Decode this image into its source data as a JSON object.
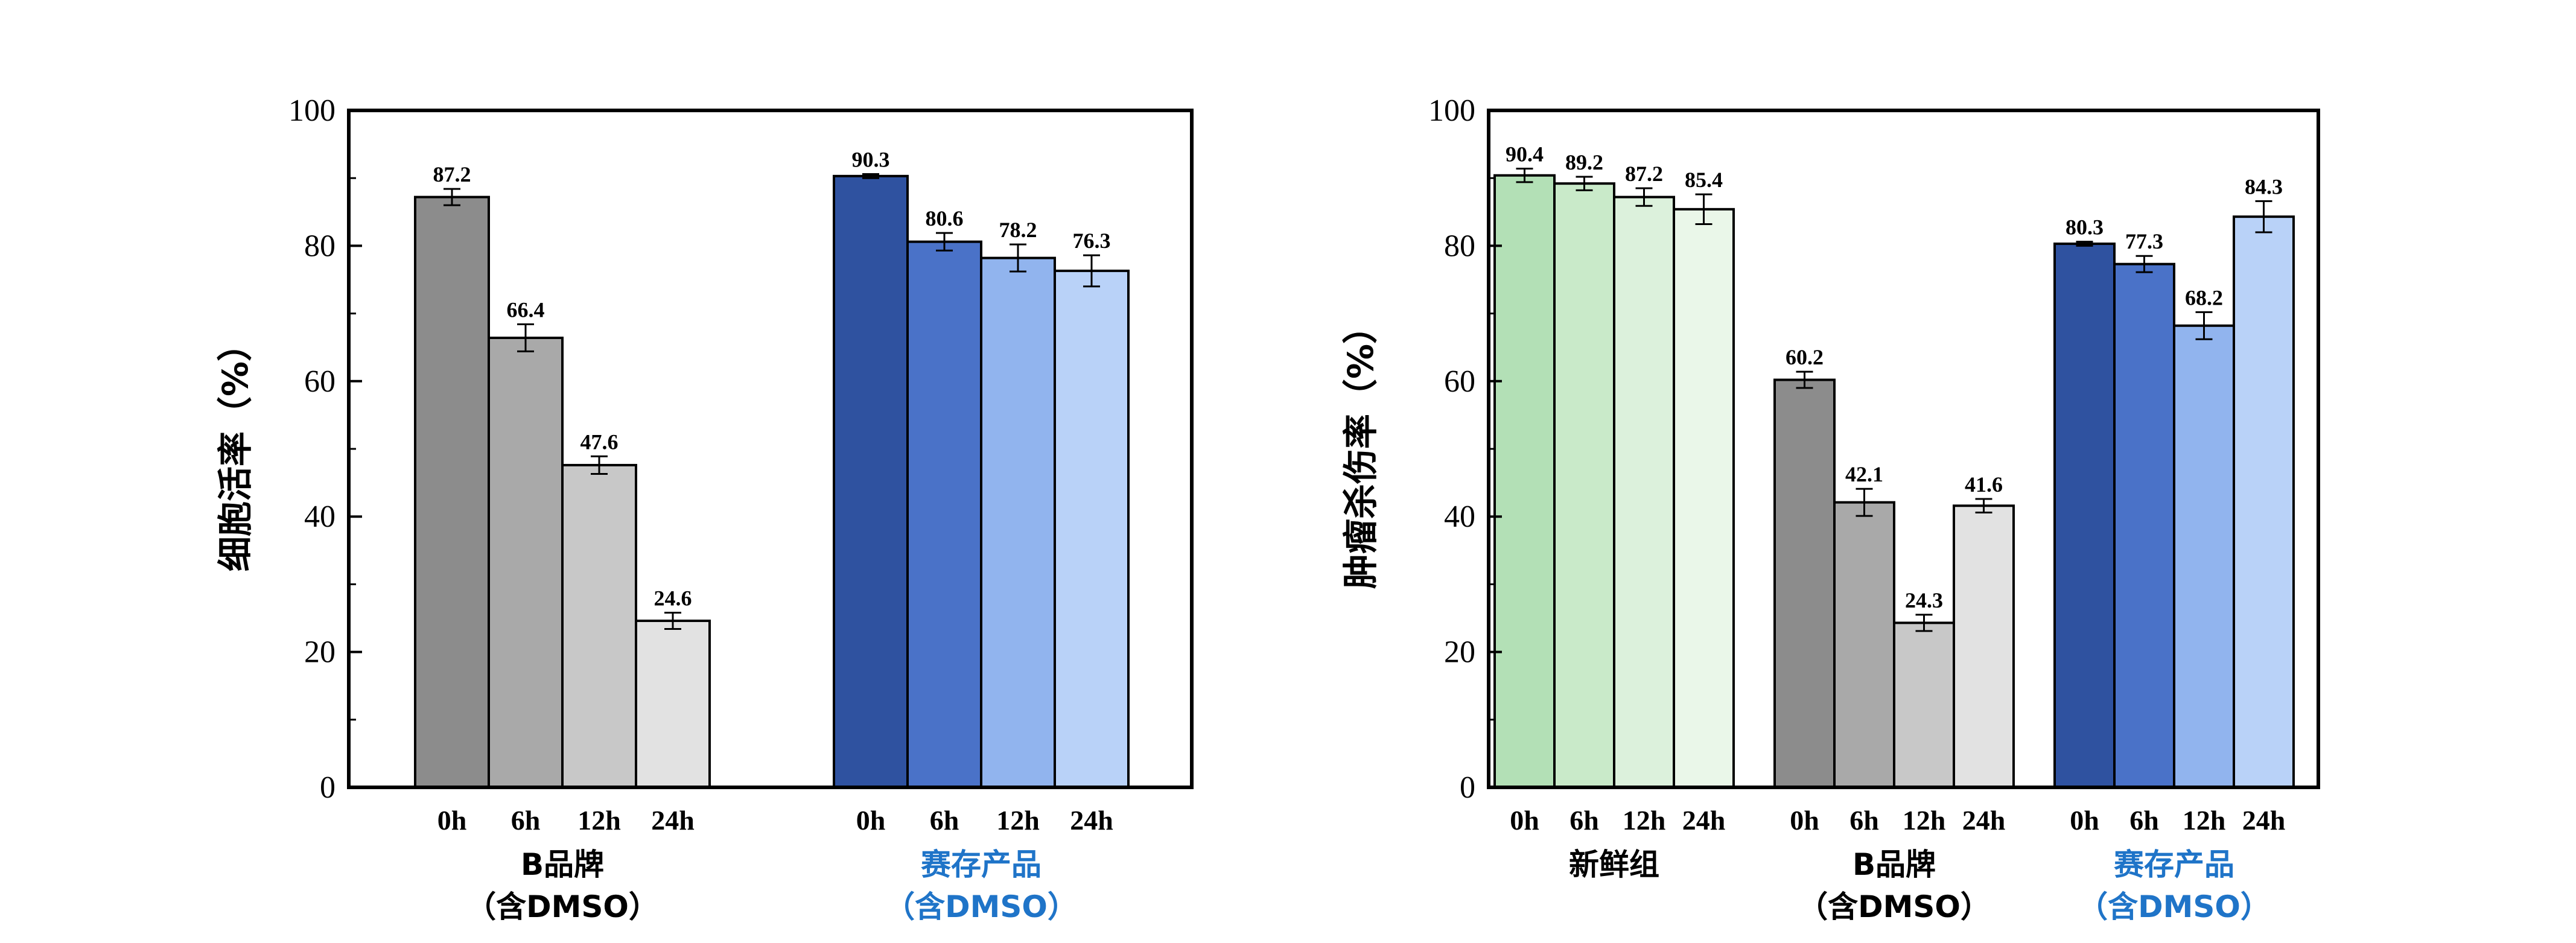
{
  "chart_data": [
    {
      "type": "bar",
      "ylabel": "细胞活率（%）",
      "ylim": [
        0,
        100
      ],
      "yticks": [
        0,
        20,
        40,
        60,
        80,
        100
      ],
      "grid": false,
      "groups": [
        {
          "label": "B品牌\n（含DMSO）",
          "label_color": "#000000",
          "bars": [
            {
              "category": "0h",
              "value": 87.2,
              "label": "87.2",
              "error": 1.2,
              "color": "#8c8c8c"
            },
            {
              "category": "6h",
              "value": 66.4,
              "label": "66.4",
              "error": 2.0,
              "color": "#a9a9a9"
            },
            {
              "category": "12h",
              "value": 47.6,
              "label": "47.6",
              "error": 1.3,
              "color": "#c8c8c8"
            },
            {
              "category": "24h",
              "value": 24.6,
              "label": "24.6",
              "error": 1.2,
              "color": "#e2e2e2"
            }
          ]
        },
        {
          "label": "赛存产品\n（含DMSO）",
          "label_color": "#1f74c8",
          "bars": [
            {
              "category": "0h",
              "value": 90.3,
              "label": "90.3",
              "error": 0.3,
              "color": "#2f52a0"
            },
            {
              "category": "6h",
              "value": 80.6,
              "label": "80.6",
              "error": 1.3,
              "color": "#4a72c8"
            },
            {
              "category": "12h",
              "value": 78.2,
              "label": "78.2",
              "error": 2.0,
              "color": "#91b4ee"
            },
            {
              "category": "24h",
              "value": 76.3,
              "label": "76.3",
              "error": 2.3,
              "color": "#b9d2f8"
            }
          ]
        }
      ]
    },
    {
      "type": "bar",
      "ylabel": "肿瘤杀伤率（%）",
      "ylim": [
        0,
        100
      ],
      "yticks": [
        0,
        20,
        40,
        60,
        80,
        100
      ],
      "grid": false,
      "groups": [
        {
          "label": "新鲜组",
          "label_color": "#000000",
          "bars": [
            {
              "category": "0h",
              "value": 90.4,
              "label": "90.4",
              "error": 1.0,
              "color": "#b3e0b6"
            },
            {
              "category": "6h",
              "value": 89.2,
              "label": "89.2",
              "error": 1.0,
              "color": "#c9eac9"
            },
            {
              "category": "12h",
              "value": 87.2,
              "label": "87.2",
              "error": 1.3,
              "color": "#dcf1dc"
            },
            {
              "category": "24h",
              "value": 85.4,
              "label": "85.4",
              "error": 2.2,
              "color": "#eaf7e9"
            }
          ]
        },
        {
          "label": "B品牌\n（含DMSO）",
          "label_color": "#000000",
          "bars": [
            {
              "category": "0h",
              "value": 60.2,
              "label": "60.2",
              "error": 1.2,
              "color": "#8c8c8c"
            },
            {
              "category": "6h",
              "value": 42.1,
              "label": "42.1",
              "error": 2.0,
              "color": "#a9a9a9"
            },
            {
              "category": "12h",
              "value": 24.3,
              "label": "24.3",
              "error": 1.2,
              "color": "#c8c8c8"
            },
            {
              "category": "24h",
              "value": 41.6,
              "label": "41.6",
              "error": 1.0,
              "color": "#e2e2e2"
            }
          ]
        },
        {
          "label": "赛存产品\n（含DMSO）",
          "label_color": "#1f74c8",
          "bars": [
            {
              "category": "0h",
              "value": 80.3,
              "label": "80.3",
              "error": 0.3,
              "color": "#2f52a0"
            },
            {
              "category": "6h",
              "value": 77.3,
              "label": "77.3",
              "error": 1.2,
              "color": "#4a72c8"
            },
            {
              "category": "12h",
              "value": 68.2,
              "label": "68.2",
              "error": 2.0,
              "color": "#91b4ee"
            },
            {
              "category": "24h",
              "value": 84.3,
              "label": "84.3",
              "error": 2.3,
              "color": "#b9d2f8"
            }
          ]
        }
      ]
    }
  ]
}
